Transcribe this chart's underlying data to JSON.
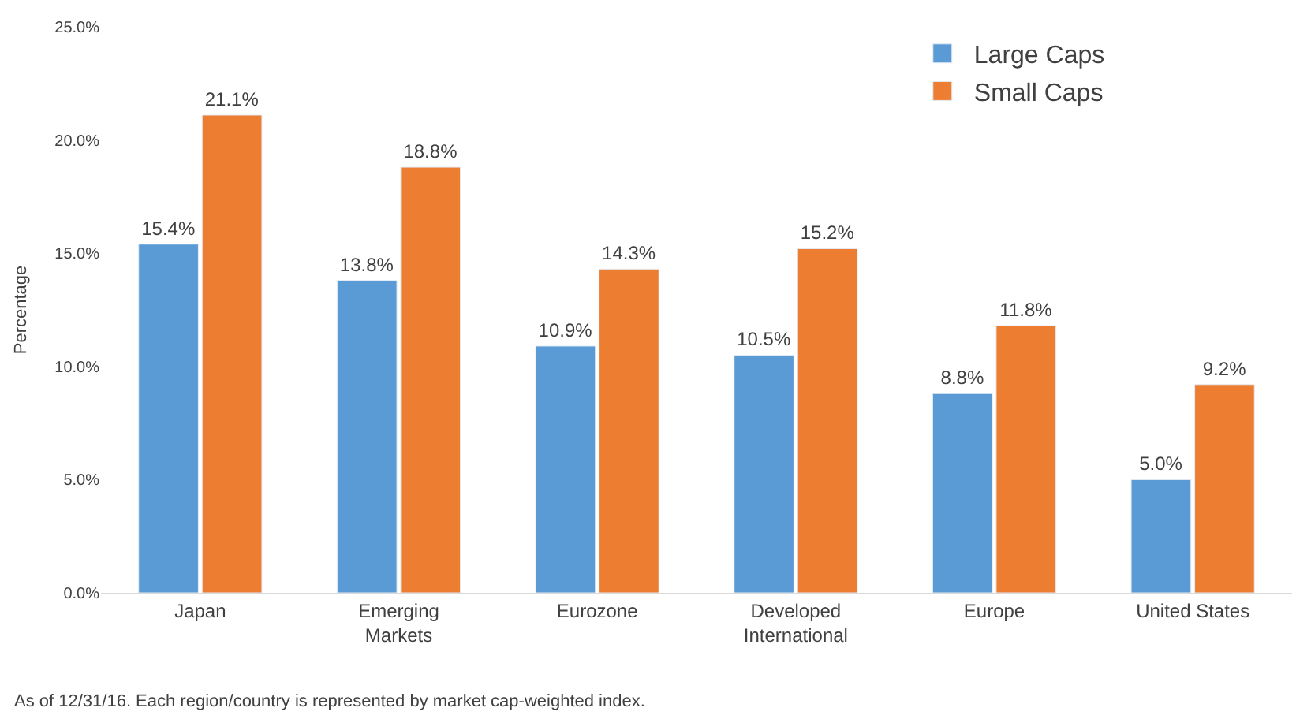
{
  "chart_data": {
    "type": "bar",
    "ylabel": "Percentage",
    "categories": [
      "Japan",
      "Emerging Markets",
      "Eurozone",
      "Developed International",
      "Europe",
      "United States"
    ],
    "series": [
      {
        "name": "Large Caps",
        "color": "#5b9bd5",
        "values": [
          15.4,
          13.8,
          10.9,
          10.5,
          8.8,
          5.0
        ],
        "value_labels": [
          "15.4%",
          "13.8%",
          "10.9%",
          "10.5%",
          "8.8%",
          "5.0%"
        ]
      },
      {
        "name": "Small Caps",
        "color": "#ed7d31",
        "values": [
          21.1,
          18.8,
          14.3,
          15.2,
          11.8,
          9.2
        ],
        "value_labels": [
          "21.1%",
          "18.8%",
          "14.3%",
          "15.2%",
          "11.8%",
          "9.2%"
        ]
      }
    ],
    "ylim": [
      0,
      25
    ],
    "yticks": [
      {
        "value": 0,
        "label": "0.0%"
      },
      {
        "value": 5,
        "label": "5.0%"
      },
      {
        "value": 10,
        "label": "10.0%"
      },
      {
        "value": 15,
        "label": "15.0%"
      },
      {
        "value": 20,
        "label": "20.0%"
      },
      {
        "value": 25,
        "label": "25.0%"
      }
    ],
    "legend": "top right",
    "annotations": [
      "As of 12/31/16. Each region/country is represented by market cap-weighted index."
    ]
  }
}
